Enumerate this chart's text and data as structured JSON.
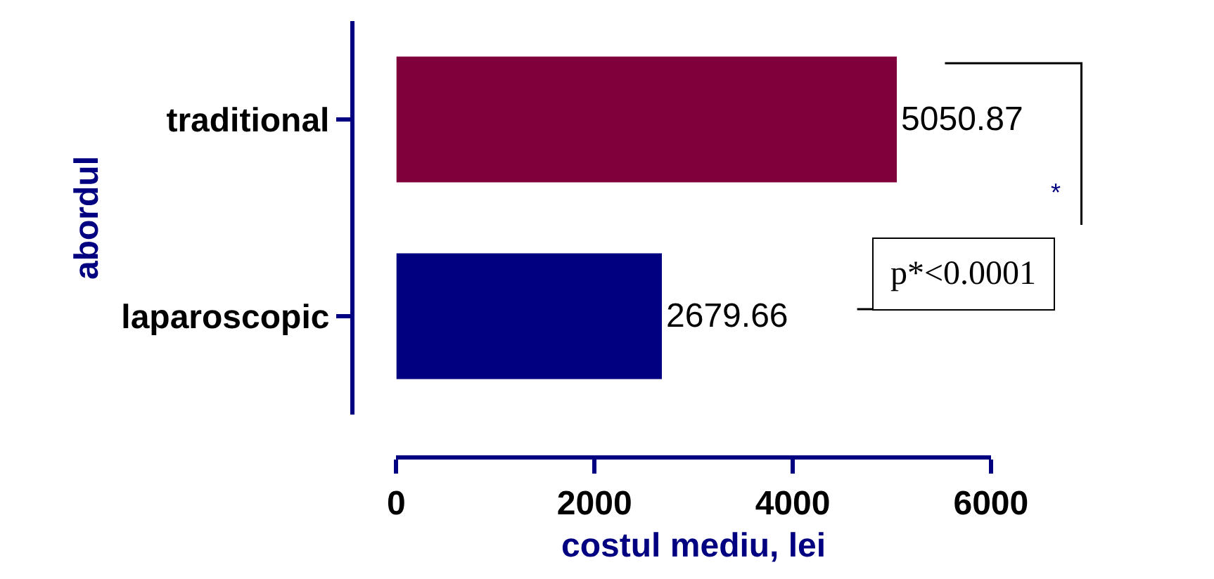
{
  "chart_data": {
    "type": "bar",
    "orientation": "horizontal",
    "categories": [
      "traditional",
      "laparoscopic"
    ],
    "values": [
      5050.87,
      2679.66
    ],
    "colors": [
      "#80003c",
      "#000080"
    ],
    "xlim": [
      0,
      6000
    ],
    "xticks": [
      0,
      2000,
      4000,
      6000
    ],
    "xlabel": "costul mediu, lei",
    "ylabel": "abordul",
    "data_labels": true,
    "annotations": [
      "*",
      "p*<0.0001"
    ]
  }
}
